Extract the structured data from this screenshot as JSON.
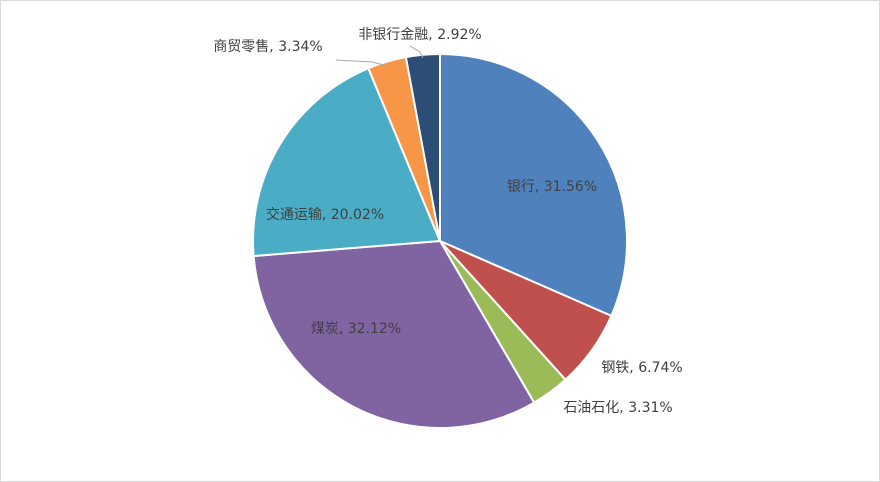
{
  "chart_data": {
    "type": "pie",
    "values": [
      31.56,
      6.74,
      3.31,
      32.12,
      20.02,
      3.34,
      2.92
    ],
    "value_labels": [
      "银行, 31.56%",
      "钢铁, 6.74%",
      "石油石化, 3.31%",
      "煤炭, 32.12%",
      "交通运输, 20.02%",
      "商贸零售, 3.34%",
      "非银行金融, 2.92%"
    ],
    "colors": [
      "#4F81BD",
      "#C0504D",
      "#9BBB59",
      "#8064A2",
      "#4BACC6",
      "#F79646",
      "#2C4D75"
    ]
  }
}
